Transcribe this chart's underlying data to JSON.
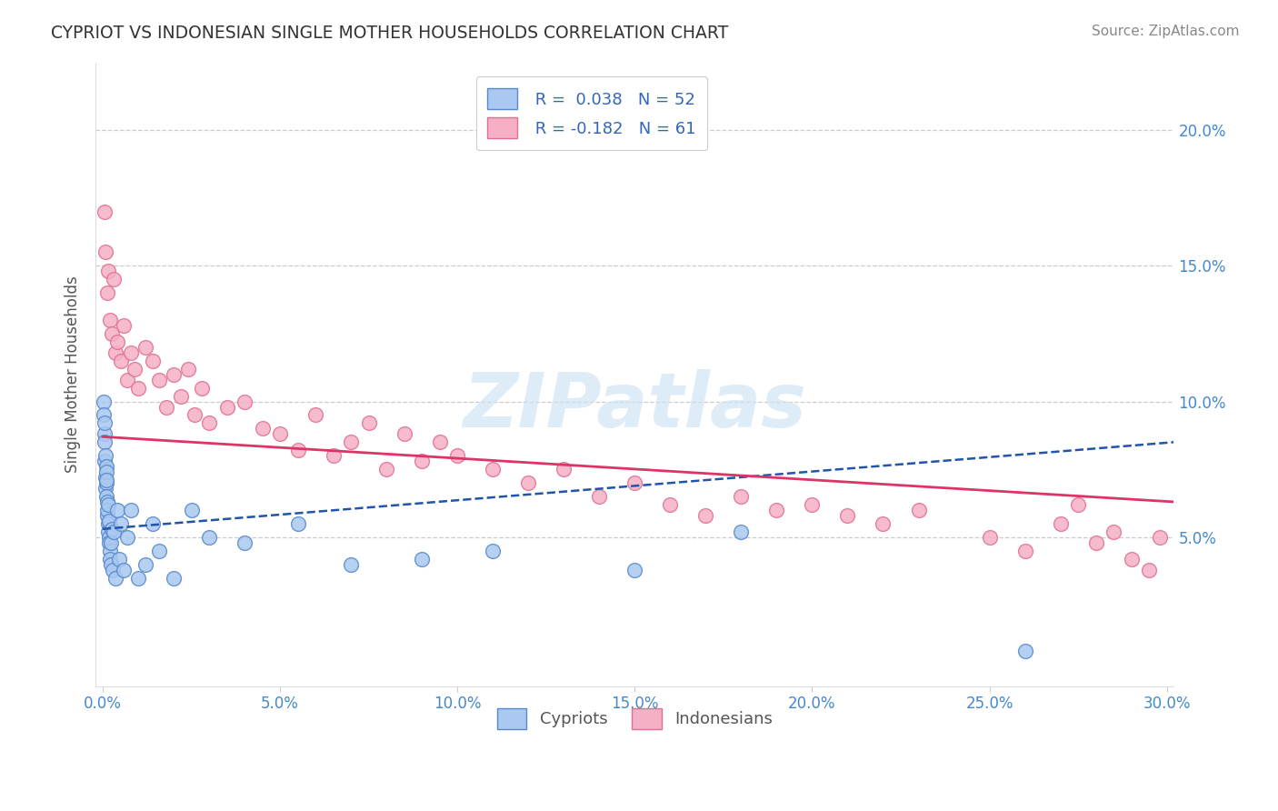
{
  "title": "CYPRIOT VS INDONESIAN SINGLE MOTHER HOUSEHOLDS CORRELATION CHART",
  "source_text": "Source: ZipAtlas.com",
  "ylabel": "Single Mother Households",
  "xlim": [
    -0.002,
    0.302
  ],
  "ylim": [
    -0.005,
    0.225
  ],
  "xticks": [
    0.0,
    0.05,
    0.1,
    0.15,
    0.2,
    0.25,
    0.3
  ],
  "xtick_labels": [
    "0.0%",
    "5.0%",
    "10.0%",
    "15.0%",
    "20.0%",
    "25.0%",
    "30.0%"
  ],
  "yticks": [
    0.05,
    0.1,
    0.15,
    0.2
  ],
  "ytick_labels": [
    "5.0%",
    "10.0%",
    "15.0%",
    "20.0%"
  ],
  "cypriot_color": "#aac8f0",
  "cypriot_edge_color": "#5588cc",
  "indonesian_color": "#f5b0c5",
  "indonesian_edge_color": "#e07090",
  "cypriot_line_color": "#2255aa",
  "indonesian_line_color": "#dd3366",
  "watermark_color": "#d0e4f5",
  "background_color": "#ffffff",
  "grid_color": "#cccccc",
  "cypriot_trend_y_start": 0.053,
  "cypriot_trend_y_end": 0.085,
  "indonesian_trend_y_start": 0.087,
  "indonesian_trend_y_end": 0.063,
  "hline_20_y": 0.2,
  "hline_15_y": 0.15,
  "hline_10_y": 0.1,
  "hline_5_y": 0.05,
  "marker_size": 130,
  "cypriot_x": [
    0.0002,
    0.0003,
    0.0004,
    0.0005,
    0.0006,
    0.0006,
    0.0007,
    0.0008,
    0.0008,
    0.0009,
    0.001,
    0.001,
    0.0011,
    0.0011,
    0.0012,
    0.0013,
    0.0014,
    0.0015,
    0.0015,
    0.0016,
    0.0017,
    0.0018,
    0.0019,
    0.002,
    0.0021,
    0.0022,
    0.0023,
    0.0025,
    0.0028,
    0.003,
    0.0035,
    0.004,
    0.0045,
    0.005,
    0.006,
    0.007,
    0.008,
    0.01,
    0.012,
    0.014,
    0.016,
    0.02,
    0.025,
    0.03,
    0.04,
    0.055,
    0.07,
    0.09,
    0.11,
    0.15,
    0.18,
    0.26
  ],
  "cypriot_y": [
    0.1,
    0.095,
    0.088,
    0.092,
    0.078,
    0.085,
    0.072,
    0.068,
    0.08,
    0.076,
    0.07,
    0.074,
    0.065,
    0.071,
    0.063,
    0.058,
    0.06,
    0.055,
    0.062,
    0.052,
    0.056,
    0.05,
    0.048,
    0.045,
    0.042,
    0.048,
    0.04,
    0.053,
    0.038,
    0.052,
    0.035,
    0.06,
    0.042,
    0.055,
    0.038,
    0.05,
    0.06,
    0.035,
    0.04,
    0.055,
    0.045,
    0.035,
    0.06,
    0.05,
    0.048,
    0.055,
    0.04,
    0.042,
    0.045,
    0.038,
    0.052,
    0.008
  ],
  "indonesian_x": [
    0.0005,
    0.0008,
    0.0012,
    0.0015,
    0.002,
    0.0025,
    0.003,
    0.0035,
    0.004,
    0.005,
    0.006,
    0.007,
    0.008,
    0.009,
    0.01,
    0.012,
    0.014,
    0.016,
    0.018,
    0.02,
    0.022,
    0.024,
    0.026,
    0.028,
    0.03,
    0.035,
    0.04,
    0.045,
    0.05,
    0.055,
    0.06,
    0.065,
    0.07,
    0.075,
    0.08,
    0.085,
    0.09,
    0.095,
    0.1,
    0.11,
    0.12,
    0.13,
    0.14,
    0.15,
    0.16,
    0.17,
    0.18,
    0.19,
    0.2,
    0.21,
    0.22,
    0.23,
    0.25,
    0.26,
    0.27,
    0.275,
    0.28,
    0.285,
    0.29,
    0.295,
    0.298
  ],
  "indonesian_y": [
    0.17,
    0.155,
    0.14,
    0.148,
    0.13,
    0.125,
    0.145,
    0.118,
    0.122,
    0.115,
    0.128,
    0.108,
    0.118,
    0.112,
    0.105,
    0.12,
    0.115,
    0.108,
    0.098,
    0.11,
    0.102,
    0.112,
    0.095,
    0.105,
    0.092,
    0.098,
    0.1,
    0.09,
    0.088,
    0.082,
    0.095,
    0.08,
    0.085,
    0.092,
    0.075,
    0.088,
    0.078,
    0.085,
    0.08,
    0.075,
    0.07,
    0.075,
    0.065,
    0.07,
    0.062,
    0.058,
    0.065,
    0.06,
    0.062,
    0.058,
    0.055,
    0.06,
    0.05,
    0.045,
    0.055,
    0.062,
    0.048,
    0.052,
    0.042,
    0.038,
    0.05
  ]
}
